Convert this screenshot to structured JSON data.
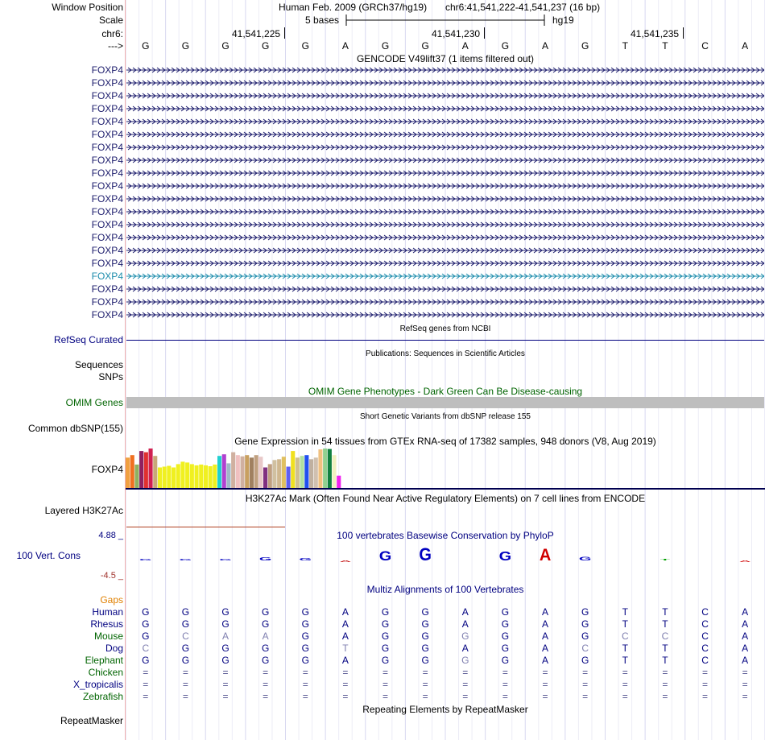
{
  "header": {
    "window_position_label": "Window Position",
    "assembly": "Human Feb. 2009 (GRCh37/hg19)",
    "position": "chr6:41,541,222-41,541,237 (16 bp)",
    "scale_label": "Scale",
    "scale_text": "5 bases",
    "scale_db": "hg19",
    "chrom_label": "chr6:",
    "strand_label": "--->",
    "ticks": [
      "41,541,225",
      "41,541,230",
      "41,541,235"
    ]
  },
  "sequence": [
    "G",
    "G",
    "G",
    "G",
    "G",
    "A",
    "G",
    "G",
    "A",
    "G",
    "A",
    "G",
    "T",
    "T",
    "C",
    "A"
  ],
  "gencode": {
    "title": "GENCODE V49lift37 (1 items filtered out)",
    "genes": [
      "FOXP4",
      "FOXP4",
      "FOXP4",
      "FOXP4",
      "FOXP4",
      "FOXP4",
      "FOXP4",
      "FOXP4",
      "FOXP4",
      "FOXP4",
      "FOXP4",
      "FOXP4",
      "FOXP4",
      "FOXP4",
      "FOXP4",
      "FOXP4",
      "FOXP4",
      "FOXP4",
      "FOXP4",
      "FOXP4"
    ],
    "highlight_index": 16,
    "gene_color": "#1c1c6c",
    "highlight_color": "#1c8cac"
  },
  "refseq": {
    "title": "RefSeq genes from NCBI",
    "label": "RefSeq Curated"
  },
  "publications": {
    "title": "Publications: Sequences in Scientific Articles",
    "label_line1": "Sequences",
    "label_line2": "SNPs"
  },
  "omim": {
    "title": "OMIM Gene Phenotypes - Dark Green Can Be Disease-causing",
    "label": "OMIM Genes"
  },
  "dbsnp": {
    "title": "Short Genetic Variants from dbSNP release 155",
    "label": "Common dbSNP(155)"
  },
  "gtex": {
    "title": "Gene Expression in 54 tissues from GTEx RNA-seq of 17382 samples, 948 donors (V8, Aug 2019)",
    "label": "FOXP4",
    "bars": [
      {
        "c": "#f0a040",
        "v": 0.74
      },
      {
        "c": "#f07020",
        "v": 0.8
      },
      {
        "c": "#90b060",
        "v": 0.57
      },
      {
        "c": "#902060",
        "v": 0.9
      },
      {
        "c": "#e03030",
        "v": 0.87
      },
      {
        "c": "#d02050",
        "v": 0.96
      },
      {
        "c": "#c8a878",
        "v": 0.78
      },
      {
        "c": "#f0f020",
        "v": 0.5
      },
      {
        "c": "#f0f020",
        "v": 0.52
      },
      {
        "c": "#f0f020",
        "v": 0.54
      },
      {
        "c": "#f0f020",
        "v": 0.5
      },
      {
        "c": "#f0f020",
        "v": 0.58
      },
      {
        "c": "#f0f020",
        "v": 0.64
      },
      {
        "c": "#f0f020",
        "v": 0.62
      },
      {
        "c": "#f0f020",
        "v": 0.58
      },
      {
        "c": "#f0f020",
        "v": 0.55
      },
      {
        "c": "#f0f020",
        "v": 0.57
      },
      {
        "c": "#f0f020",
        "v": 0.55
      },
      {
        "c": "#f0f020",
        "v": 0.53
      },
      {
        "c": "#f0f020",
        "v": 0.57
      },
      {
        "c": "#20d0d0",
        "v": 0.78
      },
      {
        "c": "#b040d0",
        "v": 0.82
      },
      {
        "c": "#a0b8c8",
        "v": 0.6
      },
      {
        "c": "#d0b0a0",
        "v": 0.87
      },
      {
        "c": "#f0c0c0",
        "v": 0.8
      },
      {
        "c": "#d0b0a0",
        "v": 0.77
      },
      {
        "c": "#c8a060",
        "v": 0.8
      },
      {
        "c": "#a08060",
        "v": 0.74
      },
      {
        "c": "#c0a080",
        "v": 0.8
      },
      {
        "c": "#e8c8c8",
        "v": 0.76
      },
      {
        "c": "#803080",
        "v": 0.5
      },
      {
        "c": "#c0a080",
        "v": 0.58
      },
      {
        "c": "#d0c0a0",
        "v": 0.68
      },
      {
        "c": "#d0b890",
        "v": 0.7
      },
      {
        "c": "#e0c060",
        "v": 0.76
      },
      {
        "c": "#6060f0",
        "v": 0.52
      },
      {
        "c": "#f0e020",
        "v": 0.9
      },
      {
        "c": "#d0c090",
        "v": 0.74
      },
      {
        "c": "#b0e0a0",
        "v": 0.78
      },
      {
        "c": "#2050f0",
        "v": 0.8
      },
      {
        "c": "#c0b0a0",
        "v": 0.7
      },
      {
        "c": "#d0c0b0",
        "v": 0.74
      },
      {
        "c": "#f0c080",
        "v": 0.94
      },
      {
        "c": "#90d090",
        "v": 0.96
      },
      {
        "c": "#108040",
        "v": 0.95
      },
      {
        "c": "#f0f0c0",
        "v": 0.8
      },
      {
        "c": "#f020f0",
        "v": 0.3
      }
    ]
  },
  "h3k27ac": {
    "title": "H3K27Ac Mark (Often Found Near Active Regulatory Elements) on 7 cell lines from ENCODE",
    "label": "Layered H3K27Ac"
  },
  "phylop": {
    "title": "100 vertebrates Basewise Conservation by PhyloP",
    "label": "100 Vert. Cons",
    "max": "4.88 _",
    "min": "-4.5 _",
    "scores": [
      0.3,
      0.2,
      0.25,
      0.6,
      0.5,
      -0.2,
      1.8,
      2.4,
      0.0,
      1.7,
      2.3,
      0.7,
      0.0,
      0.05,
      0.0,
      -0.3
    ],
    "colors": [
      "#0000c0",
      "#0000c0",
      "#0000c0",
      "#0000c0",
      "#0000c0",
      "#c00000",
      "#0000c0",
      "#0000c0",
      "#0000c0",
      "#0000c0",
      "#d00000",
      "#0000c0",
      "#0000c0",
      "#00a000",
      "#0000c0",
      "#d00000"
    ]
  },
  "multiz": {
    "title": "Multiz Alignments of 100 Vertebrates",
    "gaps_label": "Gaps",
    "species": [
      {
        "name": "Human",
        "color": "#000080",
        "seq": [
          "G",
          "G",
          "G",
          "G",
          "G",
          "A",
          "G",
          "G",
          "A",
          "G",
          "A",
          "G",
          "T",
          "T",
          "C",
          "A"
        ]
      },
      {
        "name": "Rhesus",
        "color": "#000080",
        "seq": [
          "G",
          "G",
          "G",
          "G",
          "G",
          "A",
          "G",
          "G",
          "A",
          "G",
          "A",
          "G",
          "T",
          "T",
          "C",
          "A"
        ]
      },
      {
        "name": "Mouse",
        "color": "#006400",
        "seq": [
          "G",
          "C",
          "A",
          "A",
          "G",
          "A",
          "G",
          "G",
          "G",
          "G",
          "A",
          "G",
          "C",
          "C",
          "C",
          "A"
        ]
      },
      {
        "name": "Dog",
        "color": "#000080",
        "seq": [
          "C",
          "G",
          "G",
          "G",
          "G",
          "T",
          "G",
          "G",
          "A",
          "G",
          "A",
          "C",
          "T",
          "T",
          "C",
          "A"
        ]
      },
      {
        "name": "Elephant",
        "color": "#006400",
        "seq": [
          "G",
          "G",
          "G",
          "G",
          "G",
          "A",
          "G",
          "G",
          "G",
          "G",
          "A",
          "G",
          "T",
          "T",
          "C",
          "A"
        ]
      },
      {
        "name": "Chicken",
        "color": "#006400",
        "seq": [
          "=",
          "=",
          "=",
          "=",
          "=",
          "=",
          "=",
          "=",
          "=",
          "=",
          "=",
          "=",
          "=",
          "=",
          "=",
          "="
        ]
      },
      {
        "name": "X_tropicalis",
        "color": "#000080",
        "seq": [
          "=",
          "=",
          "=",
          "=",
          "=",
          "=",
          "=",
          "=",
          "=",
          "=",
          "=",
          "=",
          "=",
          "=",
          "=",
          "="
        ]
      },
      {
        "name": "Zebrafish",
        "color": "#006400",
        "seq": [
          "=",
          "=",
          "=",
          "=",
          "=",
          "=",
          "=",
          "=",
          "=",
          "=",
          "=",
          "=",
          "=",
          "=",
          "=",
          "="
        ]
      }
    ]
  },
  "repeatmasker": {
    "title": "Repeating Elements by RepeatMasker",
    "label": "RepeatMasker"
  }
}
